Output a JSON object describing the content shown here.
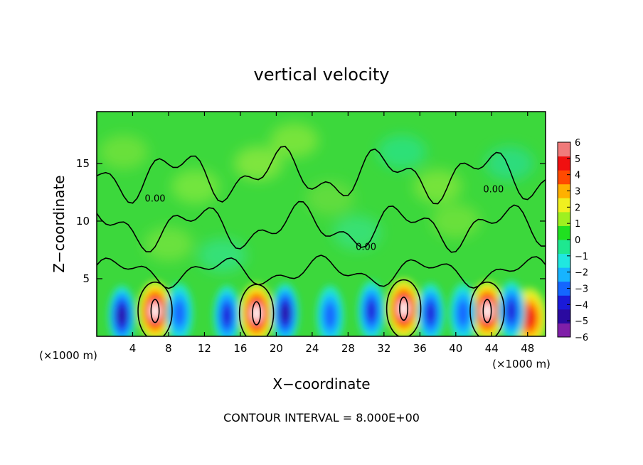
{
  "chart_data": {
    "type": "heatmap",
    "title": "vertical velocity",
    "xlabel": "X−coordinate",
    "ylabel": "Z−coordinate",
    "x_unit_left": "(×1000 m)",
    "x_unit_right": "(×1000 m)",
    "xlim": [
      0,
      50
    ],
    "ylim": [
      0,
      19.5
    ],
    "x_ticks": [
      4,
      8,
      12,
      16,
      20,
      24,
      28,
      32,
      36,
      40,
      44,
      48
    ],
    "y_ticks": [
      5,
      10,
      15
    ],
    "footer": "CONTOUR INTERVAL = 8.000E+00",
    "contour_labels": [
      {
        "text": "0.00",
        "x": 6.5,
        "y": 11.7
      },
      {
        "text": "0.00",
        "x": 30.0,
        "y": 7.5
      },
      {
        "text": "0.00",
        "x": 44.2,
        "y": 12.5
      }
    ],
    "colorbar": {
      "ticks": [
        6,
        5,
        4,
        3,
        2,
        1,
        0,
        -1,
        -2,
        -3,
        -4,
        -5,
        -6
      ],
      "tick_labels": [
        "6",
        "5",
        "4",
        "3",
        "2",
        "1",
        "0",
        "−1",
        "−2",
        "−3",
        "−4",
        "−5",
        "−6"
      ],
      "range": [
        -6,
        6
      ],
      "colors": [
        "#7f1fa8",
        "#2a0aa0",
        "#1a1ad8",
        "#1466ff",
        "#17b4ff",
        "#20e8e0",
        "#1ee890",
        "#20e020",
        "#9ef020",
        "#f0f020",
        "#ffb000",
        "#ff4a00",
        "#f01010",
        "#f07a7a"
      ]
    },
    "features": [
      {
        "kind": "updraft",
        "x": 6.5,
        "z": 2.2,
        "peak": 6
      },
      {
        "kind": "updraft",
        "x": 17.8,
        "z": 2.0,
        "peak": 6
      },
      {
        "kind": "updraft",
        "x": 34.2,
        "z": 2.4,
        "peak": 6
      },
      {
        "kind": "updraft",
        "x": 43.5,
        "z": 2.2,
        "peak": 6
      },
      {
        "kind": "updraft",
        "x": 48.2,
        "z": 1.6,
        "peak": 4
      },
      {
        "kind": "downdraft",
        "x": 2.8,
        "z": 1.8,
        "peak": -5
      },
      {
        "kind": "downdraft",
        "x": 9.2,
        "z": 2.0,
        "peak": -3
      },
      {
        "kind": "downdraft",
        "x": 14.5,
        "z": 1.8,
        "peak": -4
      },
      {
        "kind": "downdraft",
        "x": 21.0,
        "z": 2.0,
        "peak": -5
      },
      {
        "kind": "downdraft",
        "x": 26.0,
        "z": 1.8,
        "peak": -3
      },
      {
        "kind": "downdraft",
        "x": 30.6,
        "z": 2.2,
        "peak": -4
      },
      {
        "kind": "downdraft",
        "x": 37.2,
        "z": 2.0,
        "peak": -4
      },
      {
        "kind": "downdraft",
        "x": 40.8,
        "z": 2.0,
        "peak": -3
      },
      {
        "kind": "downdraft",
        "x": 46.2,
        "z": 2.2,
        "peak": -4
      }
    ],
    "grid": false,
    "legend": "colorbar-right"
  }
}
